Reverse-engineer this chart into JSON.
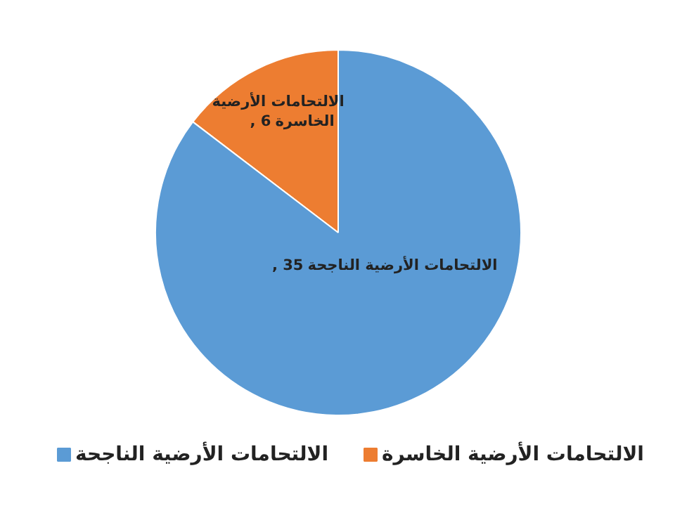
{
  "chart_data": {
    "type": "pie",
    "categories": [
      "الالتحامات الأرضية الخاسرة",
      "الالتحامات الأرضية الناجحة"
    ],
    "values": [
      6,
      35
    ],
    "colors": [
      "#ed7d31",
      "#5b9bd5"
    ],
    "value_labels": [
      ", 6",
      ", 35"
    ],
    "legend": "bottom"
  }
}
